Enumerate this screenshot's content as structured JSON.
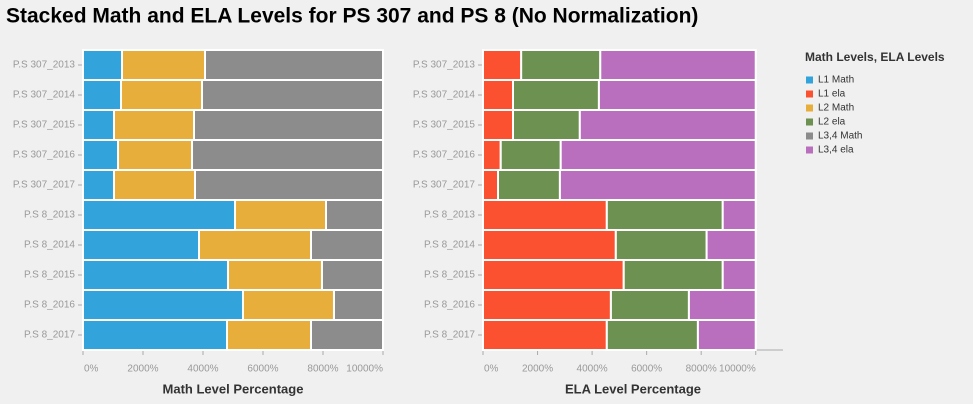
{
  "title": "Stacked Math and ELA Levels for PS 307 and PS 8 (No Normalization)",
  "legend_title": "Math Levels, ELA Levels",
  "chart_data": [
    {
      "type": "bar",
      "orientation": "horizontal",
      "stacked": true,
      "grid": true,
      "x_label": "Math Level Percentage",
      "categories": [
        "P.S 307_2013",
        "P.S 307_2014",
        "P.S 307_2015",
        "P.S 307_2016",
        "P.S 307_2017",
        "P.S 8_2013",
        "P.S 8_2014",
        "P.S 8_2015",
        "P.S 8_2016",
        "P.S 8_2017"
      ],
      "series": [
        {
          "name": "L1 Math",
          "color": "#33a3db",
          "values": [
            1300,
            1267,
            1033,
            1167,
            1033,
            5067,
            3867,
            4833,
            5333,
            4800
          ]
        },
        {
          "name": "L2 Math",
          "color": "#e8ae3c",
          "values": [
            2767,
            2700,
            2667,
            2467,
            2700,
            3033,
            3733,
            3133,
            3033,
            2800
          ]
        },
        {
          "name": "L3,4 Math",
          "color": "#8c8c8c",
          "values": [
            5933,
            6033,
            6300,
            6367,
            6267,
            1900,
            2400,
            2033,
            1633,
            2400
          ]
        }
      ],
      "xlim": [
        0,
        10000
      ],
      "xticks": [
        {
          "value": 0,
          "label": "0%"
        },
        {
          "value": 2000,
          "label": "2000%"
        },
        {
          "value": 4000,
          "label": "4000%"
        },
        {
          "value": 6000,
          "label": "6000%"
        },
        {
          "value": 8000,
          "label": "8000%"
        },
        {
          "value": 10000,
          "label": "10000%"
        }
      ]
    },
    {
      "type": "bar",
      "orientation": "horizontal",
      "stacked": true,
      "grid": true,
      "x_label": "ELA Level Percentage",
      "categories": [
        "P.S 307_2013",
        "P.S 307_2014",
        "P.S 307_2015",
        "P.S 307_2016",
        "P.S 307_2017",
        "P.S 8_2013",
        "P.S 8_2014",
        "P.S 8_2015",
        "P.S 8_2016",
        "P.S 8_2017"
      ],
      "series": [
        {
          "name": "L1 ela",
          "color": "#fc5130",
          "values": [
            1400,
            1100,
            1100,
            650,
            550,
            4540,
            4870,
            5160,
            4690,
            4540
          ]
        },
        {
          "name": "L2 ela",
          "color": "#6c9150",
          "values": [
            2900,
            3150,
            2450,
            2200,
            2270,
            4250,
            3330,
            3630,
            2860,
            3340
          ]
        },
        {
          "name": "L3,4 ela",
          "color": "#b96fbd",
          "values": [
            5700,
            5750,
            6450,
            7150,
            7180,
            1210,
            1800,
            1210,
            2450,
            2120
          ]
        }
      ],
      "xlim": [
        0,
        11000
      ],
      "xticks": [
        {
          "value": 0,
          "label": "0%"
        },
        {
          "value": 2000,
          "label": "2000%"
        },
        {
          "value": 4000,
          "label": "4000%"
        },
        {
          "value": 6000,
          "label": "6000%"
        },
        {
          "value": 8000,
          "label": "8000%"
        },
        {
          "value": 10000,
          "label": "10000%"
        }
      ]
    }
  ]
}
